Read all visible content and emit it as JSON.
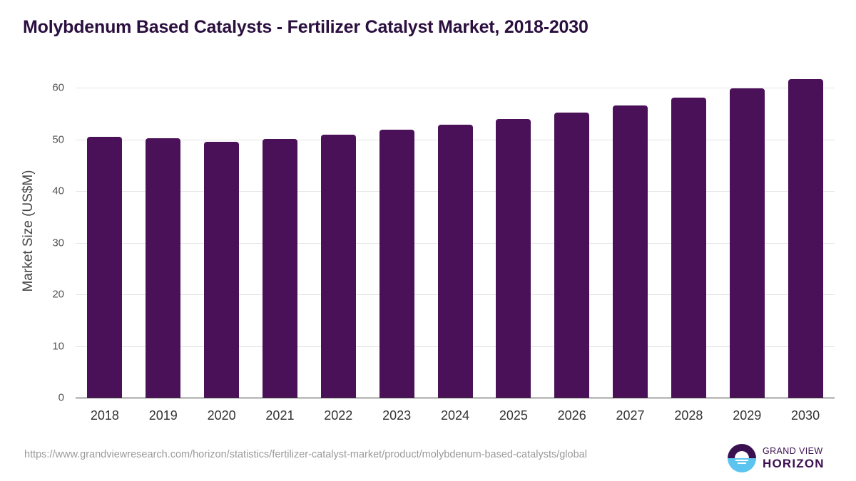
{
  "title": "Molybdenum Based Catalysts - Fertilizer Catalyst Market, 2018-2030",
  "source_url": "https://www.grandviewresearch.com/horizon/statistics/fertilizer-catalyst-market/product/molybdenum-based-catalysts/global",
  "logo": {
    "line1": "GRAND VIEW",
    "line2": "HORIZON"
  },
  "colors": {
    "bar": "#4a1158",
    "title": "#2b0f3f",
    "logo_dark": "#3b1050",
    "logo_light": "#5bc4ef"
  },
  "chart_data": {
    "type": "bar",
    "title": "Molybdenum Based Catalysts - Fertilizer Catalyst Market, 2018-2030",
    "xlabel": "",
    "ylabel": "Market Size (US$M)",
    "categories": [
      "2018",
      "2019",
      "2020",
      "2021",
      "2022",
      "2023",
      "2024",
      "2025",
      "2026",
      "2027",
      "2028",
      "2029",
      "2030"
    ],
    "values": [
      50.5,
      50.2,
      49.5,
      50.1,
      50.9,
      51.9,
      52.8,
      53.9,
      55.2,
      56.6,
      58.1,
      59.9,
      61.7
    ],
    "yticks": [
      0,
      10,
      20,
      30,
      40,
      50,
      60
    ],
    "ylim": [
      0,
      60
    ],
    "grid": true,
    "legend": null
  }
}
